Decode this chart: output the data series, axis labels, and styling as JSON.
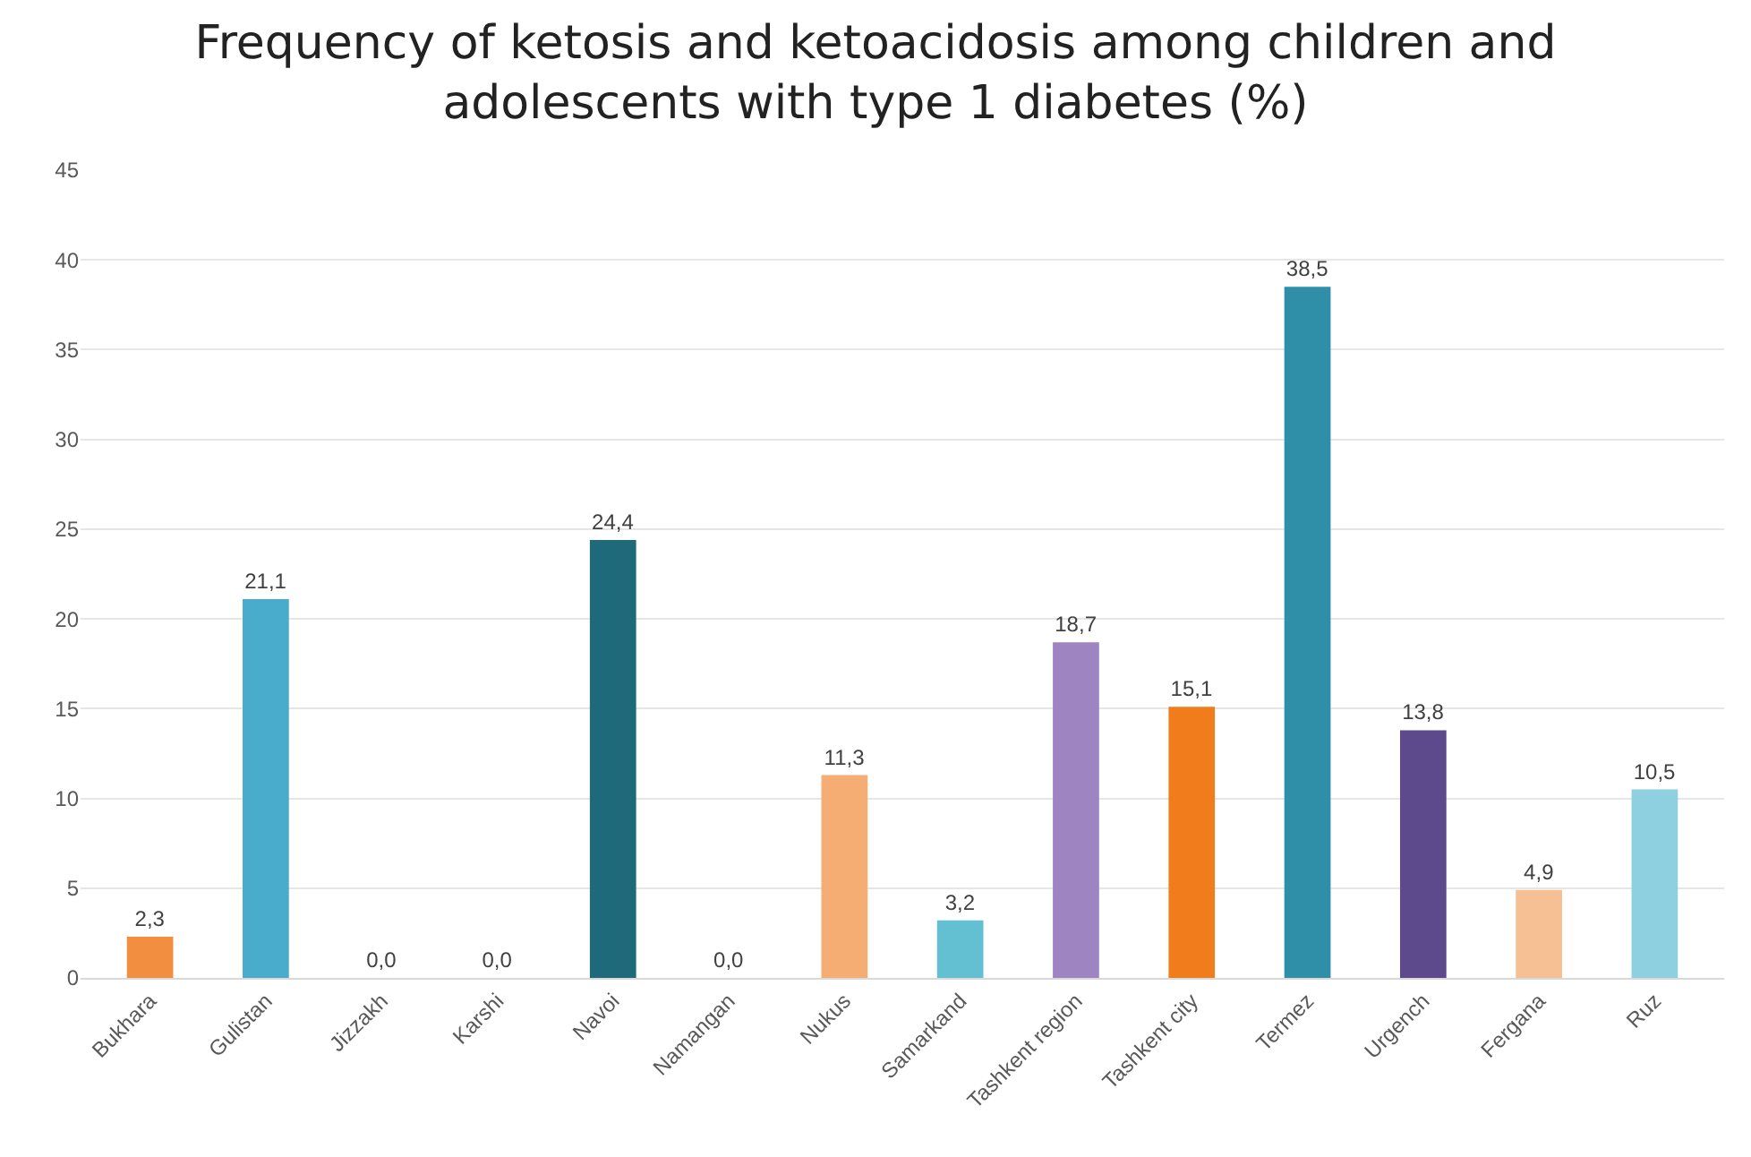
{
  "chart_data": {
    "type": "bar",
    "title": "Frequency of ketosis and ketoacidosis among children and adolescents with type 1 diabetes (%)",
    "categories": [
      "Bukhara",
      "Gulistan",
      "Jizzakh",
      "Karshi",
      "Navoi",
      "Namangan",
      "Nukus",
      "Samarkand",
      "Tashkent region",
      "Tashkent city",
      "Termez",
      "Urgench",
      "Fergana",
      "Ruz"
    ],
    "values": [
      2.3,
      21.1,
      0.0,
      0.0,
      24.4,
      0.0,
      11.3,
      3.2,
      18.7,
      15.1,
      38.5,
      13.8,
      4.9,
      10.5
    ],
    "value_labels": [
      "2,3",
      "21,1",
      "0,0",
      "0,0",
      "24,4",
      "0,0",
      "11,3",
      "3,2",
      "18,7",
      "15,1",
      "38,5",
      "13,8",
      "4,9",
      "10,5"
    ],
    "colors": [
      "#f28e3f",
      "#4aaccc",
      "#8b72b0",
      "#c0540f",
      "#1f6a7a",
      "#3f3560",
      "#f5ad74",
      "#63c0d3",
      "#9e84c0",
      "#f07c1c",
      "#2f8fa8",
      "#5c4a8c",
      "#f7c094",
      "#8fd0e0"
    ],
    "ylim": [
      0,
      45
    ],
    "yticks": [
      0,
      5,
      10,
      15,
      20,
      25,
      30,
      35,
      40,
      45
    ],
    "grid": "y"
  }
}
